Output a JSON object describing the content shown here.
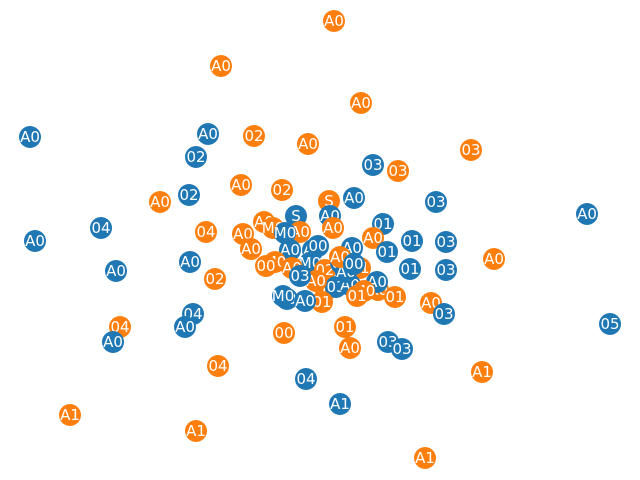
{
  "colors": {
    "blue": "#1f77b4",
    "orange": "#ff7f0e",
    "label": "#ffffff"
  },
  "nodes": [
    {
      "label": "A0",
      "color": "orange"
    },
    {
      "label": "A0",
      "color": "orange"
    },
    {
      "label": "A0",
      "color": "orange"
    },
    {
      "label": "A0",
      "color": "blue"
    },
    {
      "label": "A0",
      "color": "blue"
    },
    {
      "label": "02",
      "color": "orange"
    },
    {
      "label": "A0",
      "color": "orange"
    },
    {
      "label": "02",
      "color": "blue"
    },
    {
      "label": "03",
      "color": "blue"
    },
    {
      "label": "03",
      "color": "orange"
    },
    {
      "label": "03",
      "color": "orange"
    },
    {
      "label": "A0",
      "color": "orange"
    },
    {
      "label": "02",
      "color": "blue"
    },
    {
      "label": "02",
      "color": "orange"
    },
    {
      "label": "A0",
      "color": "orange"
    },
    {
      "label": "A0",
      "color": "blue"
    },
    {
      "label": "S",
      "color": "orange"
    },
    {
      "label": "03",
      "color": "blue"
    },
    {
      "label": "A0",
      "color": "blue"
    },
    {
      "label": "04",
      "color": "blue"
    },
    {
      "label": "A0",
      "color": "blue"
    },
    {
      "label": "04",
      "color": "orange"
    },
    {
      "label": "A0",
      "color": "orange"
    },
    {
      "label": "A0",
      "color": "orange"
    },
    {
      "label": "A0",
      "color": "orange"
    },
    {
      "label": "S",
      "color": "blue"
    },
    {
      "label": "A0",
      "color": "blue"
    },
    {
      "label": "01",
      "color": "blue"
    },
    {
      "label": "A0",
      "color": "orange"
    },
    {
      "label": "A0",
      "color": "orange"
    },
    {
      "label": "A0",
      "color": "blue"
    },
    {
      "label": "A0",
      "color": "orange"
    },
    {
      "label": "A0",
      "color": "blue"
    },
    {
      "label": "01",
      "color": "blue"
    },
    {
      "label": "01",
      "color": "blue"
    },
    {
      "label": "03",
      "color": "blue"
    },
    {
      "label": "A0",
      "color": "orange"
    },
    {
      "label": "A0",
      "color": "blue"
    },
    {
      "label": "A0",
      "color": "blue"
    },
    {
      "label": "02",
      "color": "orange"
    },
    {
      "label": "01",
      "color": "blue"
    },
    {
      "label": "03",
      "color": "blue"
    },
    {
      "label": "A0",
      "color": "blue"
    },
    {
      "label": "01",
      "color": "orange"
    },
    {
      "label": "A0",
      "color": "orange"
    },
    {
      "label": "A0",
      "color": "blue"
    },
    {
      "label": "01",
      "color": "orange"
    },
    {
      "label": "A0",
      "color": "orange"
    },
    {
      "label": "03",
      "color": "blue"
    },
    {
      "label": "04",
      "color": "blue"
    },
    {
      "label": "04",
      "color": "orange"
    },
    {
      "label": "A0",
      "color": "blue"
    },
    {
      "label": "A0",
      "color": "blue"
    },
    {
      "label": "00",
      "color": "orange"
    },
    {
      "label": "01",
      "color": "orange"
    },
    {
      "label": "A0",
      "color": "orange"
    },
    {
      "label": "03",
      "color": "blue"
    },
    {
      "label": "03",
      "color": "blue"
    },
    {
      "label": "05",
      "color": "blue"
    },
    {
      "label": "04",
      "color": "orange"
    },
    {
      "label": "A1",
      "color": "orange"
    },
    {
      "label": "04",
      "color": "blue"
    },
    {
      "label": "A1",
      "color": "blue"
    },
    {
      "label": "A1",
      "color": "orange"
    },
    {
      "label": "A1",
      "color": "orange"
    },
    {
      "label": "A1",
      "color": "orange"
    },
    {
      "label": "M0",
      "color": "orange"
    },
    {
      "label": "M0",
      "color": "blue"
    },
    {
      "label": "M0",
      "color": "orange"
    },
    {
      "label": "M0",
      "color": "blue"
    },
    {
      "label": "A0",
      "color": "orange"
    },
    {
      "label": "02",
      "color": "orange"
    },
    {
      "label": "02",
      "color": "blue"
    },
    {
      "label": "01",
      "color": "orange"
    },
    {
      "label": "03",
      "color": "blue"
    },
    {
      "label": "A0",
      "color": "blue"
    },
    {
      "label": "M0",
      "color": "orange"
    },
    {
      "label": "00",
      "color": "blue"
    },
    {
      "label": "01",
      "color": "orange"
    },
    {
      "label": "A0",
      "color": "blue"
    },
    {
      "label": "01",
      "color": "orange"
    },
    {
      "label": "A0",
      "color": "blue"
    },
    {
      "label": "00",
      "color": "blue"
    },
    {
      "label": "00",
      "color": "orange"
    },
    {
      "label": "M0",
      "color": "blue"
    },
    {
      "label": "A0",
      "color": "orange"
    },
    {
      "label": "A0",
      "color": "orange"
    },
    {
      "label": "00",
      "color": "blue"
    },
    {
      "label": "03",
      "color": "blue"
    }
  ]
}
